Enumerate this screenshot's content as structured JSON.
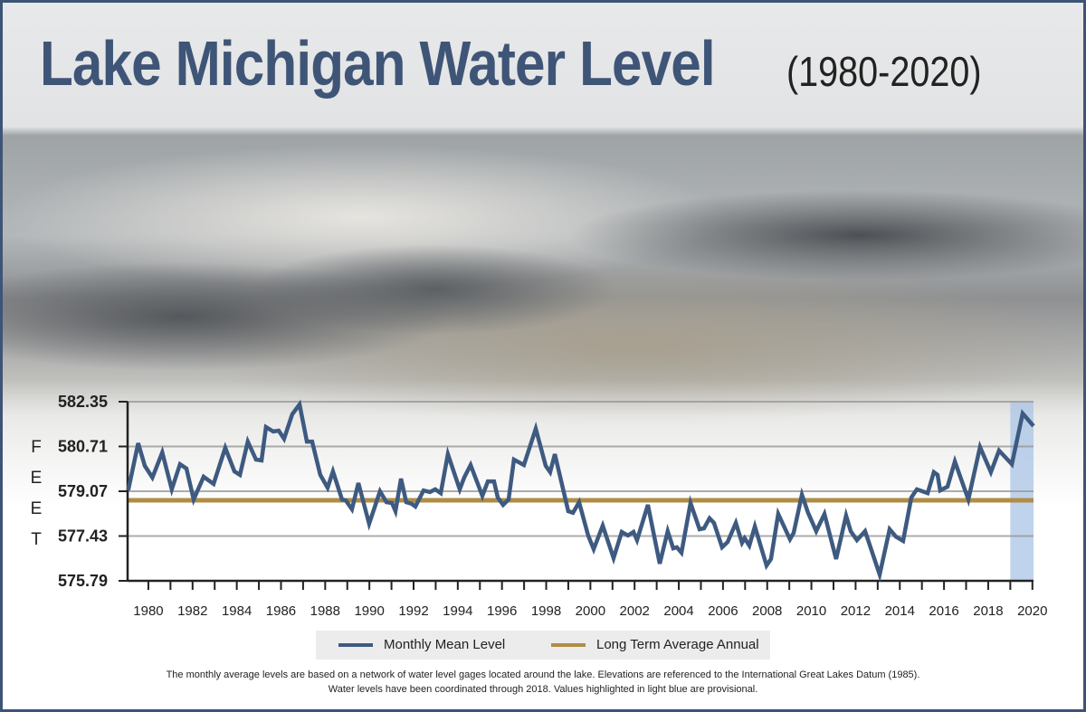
{
  "title": "Lake Michigan Water Level",
  "subtitle": "(1980-2020)",
  "colors": {
    "title": "#3f5577",
    "series": "#3e5a80",
    "average": "#b08d45",
    "provisional": "#aac4e6",
    "frame": "#3d5477"
  },
  "chart_data": {
    "type": "line",
    "title": "Lake Michigan Water Level (1980-2020)",
    "ylabel": "FEET",
    "xlabel": "",
    "ylim": [
      575.79,
      582.35
    ],
    "xlim": [
      1979.06,
      2020.05
    ],
    "yticks": [
      "582.35",
      "580.71",
      "579.07",
      "577.43",
      "575.79"
    ],
    "xticks": [
      "1980",
      "1982",
      "1984",
      "1986",
      "1988",
      "1990",
      "1992",
      "1994",
      "1996",
      "1998",
      "2000",
      "2002",
      "2004",
      "2006",
      "2008",
      "2010",
      "2012",
      "2014",
      "2016",
      "2018",
      "2020"
    ],
    "grid": true,
    "legend_position": "bottom",
    "provisional_range": [
      2019.0,
      2020.05
    ],
    "series": [
      {
        "name": "Monthly Mean Level",
        "color": "#3e5a80",
        "x": [
          1979.09,
          1979.54,
          1979.84,
          1980.18,
          1980.63,
          1981.06,
          1981.43,
          1981.72,
          1982.05,
          1982.5,
          1982.95,
          1983.48,
          1983.89,
          1984.14,
          1984.5,
          1984.87,
          1985.12,
          1985.32,
          1985.65,
          1985.9,
          1986.14,
          1986.51,
          1986.84,
          1987.17,
          1987.41,
          1987.78,
          1988.11,
          1988.35,
          1988.76,
          1988.93,
          1989.21,
          1989.5,
          1989.99,
          1990.48,
          1990.77,
          1991.02,
          1991.18,
          1991.43,
          1991.67,
          1991.92,
          1992.08,
          1992.45,
          1992.74,
          1992.98,
          1993.23,
          1993.55,
          1994.09,
          1994.29,
          1994.58,
          1995.11,
          1995.36,
          1995.64,
          1995.81,
          1996.05,
          1996.3,
          1996.54,
          1996.99,
          1997.53,
          1997.98,
          1998.18,
          1998.39,
          1999.0,
          1999.21,
          1999.49,
          1999.9,
          2000.15,
          2000.56,
          2001.05,
          2001.42,
          2001.7,
          2001.95,
          2002.11,
          2002.6,
          2003.14,
          2003.5,
          2003.75,
          2003.91,
          2004.12,
          2004.53,
          2004.94,
          2005.14,
          2005.39,
          2005.59,
          2005.96,
          2006.21,
          2006.58,
          2006.86,
          2006.98,
          2007.19,
          2007.44,
          2007.97,
          2008.17,
          2008.5,
          2009.03,
          2009.2,
          2009.57,
          2009.85,
          2010.22,
          2010.59,
          2011.12,
          2011.57,
          2011.78,
          2012.06,
          2012.43,
          2013.09,
          2013.54,
          2013.82,
          2014.15,
          2014.52,
          2014.77,
          2015.26,
          2015.54,
          2015.71,
          2015.83,
          2016.16,
          2016.49,
          2017.1,
          2017.63,
          2018.12,
          2018.49,
          2019.07,
          2019.56,
          2020.05
        ],
        "values": [
          579.11,
          580.83,
          580.0,
          579.57,
          580.49,
          579.14,
          580.06,
          579.9,
          578.77,
          579.6,
          579.34,
          580.66,
          579.8,
          579.67,
          580.89,
          580.23,
          580.2,
          581.42,
          581.26,
          581.29,
          580.99,
          581.89,
          582.25,
          580.89,
          580.89,
          579.67,
          579.2,
          579.8,
          578.77,
          578.74,
          578.41,
          579.37,
          577.88,
          579.07,
          578.67,
          578.64,
          578.34,
          579.53,
          578.67,
          578.61,
          578.51,
          579.1,
          579.04,
          579.14,
          579.0,
          580.43,
          579.14,
          579.57,
          580.03,
          578.9,
          579.43,
          579.43,
          578.84,
          578.57,
          578.77,
          580.23,
          580.03,
          581.36,
          580.0,
          579.77,
          580.43,
          578.34,
          578.28,
          578.67,
          577.45,
          576.95,
          577.81,
          576.62,
          577.58,
          577.45,
          577.58,
          577.28,
          578.57,
          576.42,
          577.61,
          576.98,
          577.02,
          576.82,
          578.64,
          577.68,
          577.71,
          578.08,
          577.91,
          577.02,
          577.21,
          577.91,
          577.18,
          577.35,
          577.08,
          577.78,
          576.35,
          576.59,
          578.24,
          577.31,
          577.55,
          578.94,
          578.28,
          577.61,
          578.24,
          576.59,
          578.18,
          577.61,
          577.28,
          577.61,
          576.02,
          577.68,
          577.41,
          577.25,
          578.84,
          579.14,
          579.0,
          579.77,
          579.67,
          579.1,
          579.24,
          580.16,
          578.77,
          580.69,
          579.77,
          580.56,
          580.06,
          581.92,
          581.46
        ]
      },
      {
        "name": "Long Term Average Annual",
        "color": "#b08d45",
        "value": 578.74
      }
    ]
  },
  "ylabel_letters": [
    "F",
    "E",
    "E",
    "T"
  ],
  "legend": {
    "series": "Monthly Mean Level",
    "average": "Long Term Average Annual"
  },
  "note": {
    "line1": "The monthly average levels are based on a network of water level gages located around the lake. Elevations are referenced to the International Great Lakes Datum (1985).",
    "line2": "Water levels have been coordinated through 2018. Values highlighted in light blue are provisional."
  }
}
